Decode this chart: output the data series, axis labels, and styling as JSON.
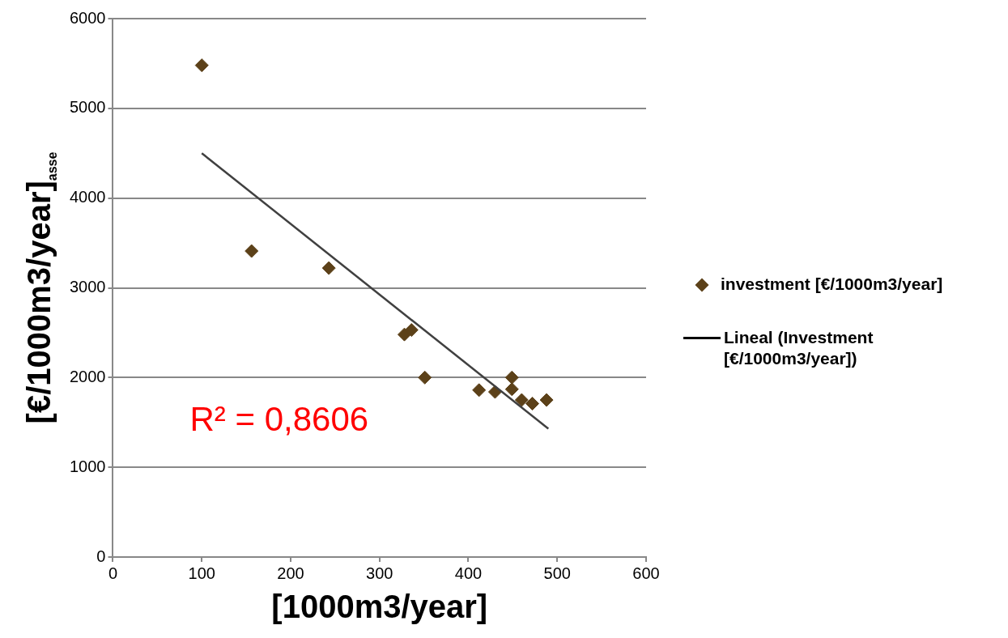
{
  "chart_data": {
    "type": "scatter",
    "xlabel": "[1000m3/year]",
    "ylabel": "[€/1000m3/year]$_{asse}$",
    "x": [
      100,
      156,
      243,
      328,
      336,
      351,
      412,
      430,
      449,
      449,
      460,
      472,
      488
    ],
    "series": [
      {
        "name": "investment [€/1000m3/year]",
        "color": "#5c4119",
        "marker": "diamond",
        "values": [
          5480,
          3410,
          3220,
          2480,
          2530,
          2000,
          1860,
          1840,
          2000,
          1870,
          1750,
          1710,
          1750
        ]
      },
      {
        "name": "Lineal (Investment [€/1000m3/year])",
        "type": "line",
        "color": "#404040",
        "marker": "none",
        "x": [
          100,
          490
        ],
        "values": [
          4500,
          1430
        ]
      }
    ],
    "xlim": [
      0,
      600
    ],
    "xticks": [
      0,
      100,
      200,
      300,
      400,
      500,
      600
    ],
    "ylim": [
      0,
      6000
    ],
    "yticks": [
      0,
      1000,
      2000,
      3000,
      4000,
      5000,
      6000
    ],
    "grid": "y",
    "legend": "right",
    "annotations": [
      "R² = 0,8606"
    ]
  }
}
